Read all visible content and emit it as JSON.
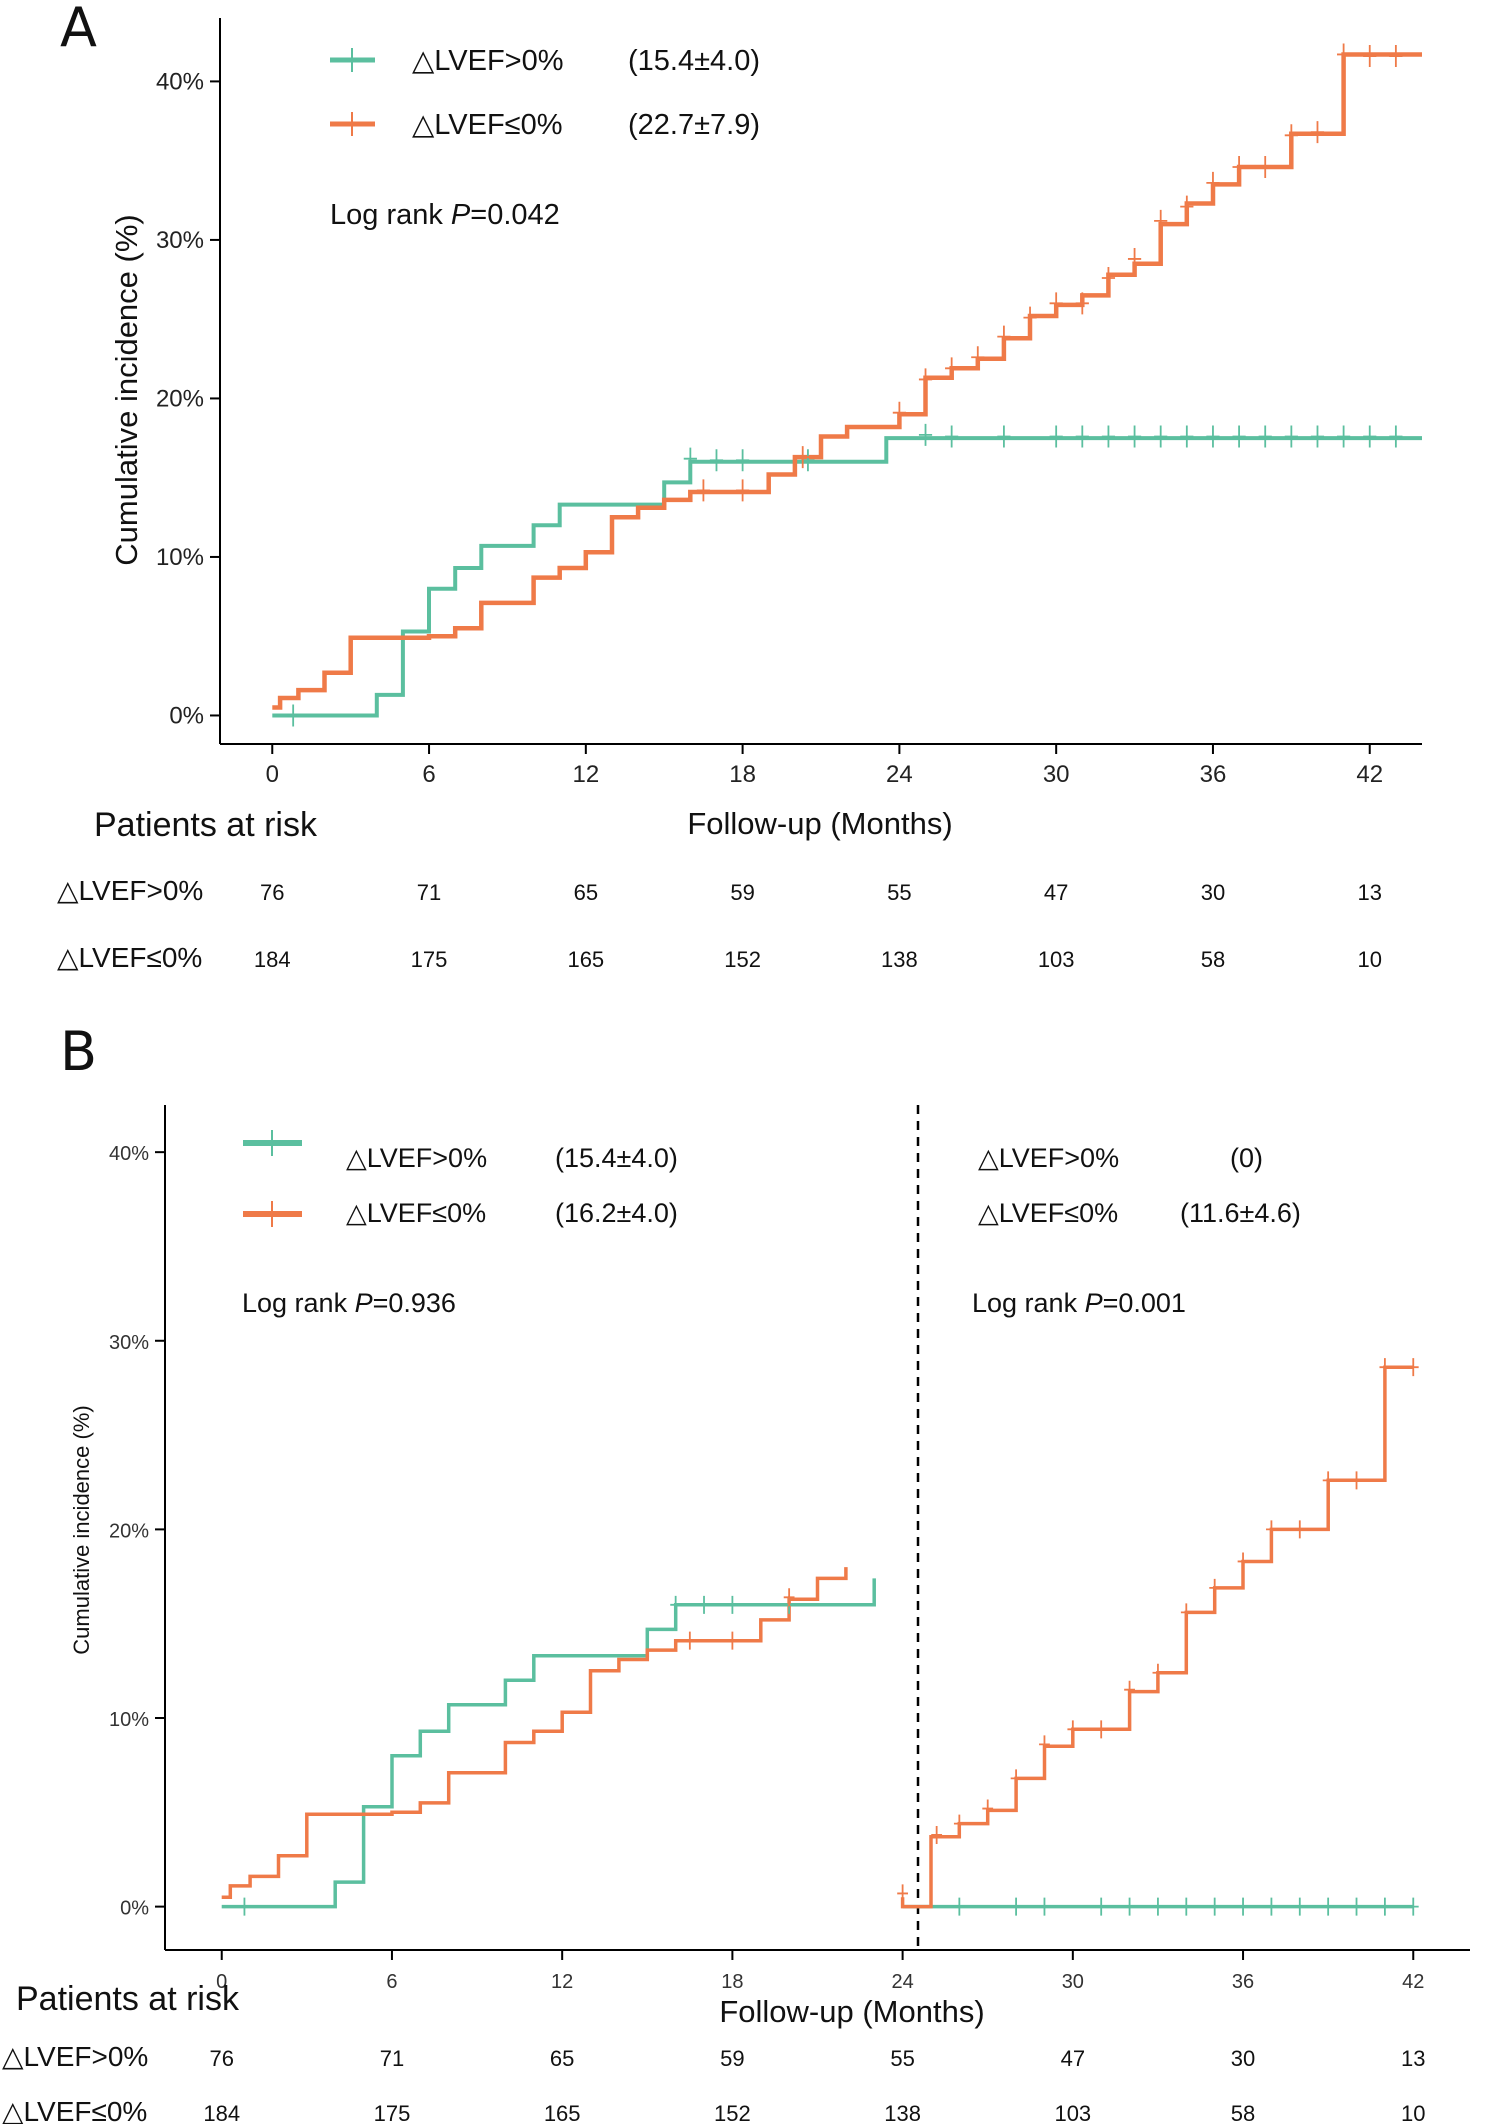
{
  "colors": {
    "increase": "#5bbf9f",
    "decrease": "#ef7a48",
    "axis": "#000000"
  },
  "chart_data": [
    {
      "type": "line",
      "panel": "A",
      "xlabel": "Follow-up (Months)",
      "ylabel": "Cumulative incidence (%)",
      "x_ticks": [
        "0",
        "6",
        "12",
        "18",
        "24",
        "30",
        "36",
        "42"
      ],
      "y_ticks": [
        "0%",
        "10%",
        "20%",
        "30%",
        "40%"
      ],
      "xlim": [
        -2,
        44
      ],
      "ylim": [
        -1.8,
        44
      ],
      "legend": {
        "entries": [
          {
            "label": "△LVEF>0%",
            "value": "(15.4±4.0)"
          },
          {
            "label": "△LVEF≤0%",
            "value": "(22.7±7.9)"
          }
        ],
        "stat_prefix": "Log rank ",
        "stat_p": "P",
        "stat_value": "=0.042"
      },
      "series": [
        {
          "name": "△LVEF>0%",
          "steps": [
            [
              0,
              0
            ],
            [
              4,
              1.3
            ],
            [
              5,
              5.3
            ],
            [
              6,
              8
            ],
            [
              7,
              9.3
            ],
            [
              8,
              10.7
            ],
            [
              10,
              12
            ],
            [
              11,
              13.3
            ],
            [
              15,
              14.7
            ],
            [
              16,
              16
            ],
            [
              20,
              16
            ],
            [
              23.5,
              17.5
            ],
            [
              44,
              17.5
            ]
          ],
          "censors": [
            [
              0.8,
              0
            ],
            [
              16,
              16.2
            ],
            [
              17,
              16.1
            ],
            [
              18,
              16.1
            ],
            [
              20.5,
              16.1
            ],
            [
              25,
              17.7
            ],
            [
              26,
              17.6
            ],
            [
              28,
              17.6
            ],
            [
              30,
              17.6
            ],
            [
              31,
              17.6
            ],
            [
              32,
              17.6
            ],
            [
              33,
              17.6
            ],
            [
              34,
              17.6
            ],
            [
              35,
              17.6
            ],
            [
              36,
              17.6
            ],
            [
              37,
              17.6
            ],
            [
              38,
              17.6
            ],
            [
              39,
              17.6
            ],
            [
              40,
              17.6
            ],
            [
              41,
              17.6
            ],
            [
              42,
              17.6
            ],
            [
              43,
              17.6
            ]
          ]
        },
        {
          "name": "△LVEF≤0%",
          "steps": [
            [
              0,
              0.5
            ],
            [
              0.3,
              1.1
            ],
            [
              1,
              1.6
            ],
            [
              2,
              2.7
            ],
            [
              3,
              4.9
            ],
            [
              6,
              5
            ],
            [
              7,
              5.5
            ],
            [
              8,
              7.1
            ],
            [
              10,
              8.7
            ],
            [
              11,
              9.3
            ],
            [
              12,
              10.3
            ],
            [
              13,
              12.5
            ],
            [
              14,
              13.1
            ],
            [
              15,
              13.6
            ],
            [
              16,
              14.1
            ],
            [
              19,
              15.2
            ],
            [
              20,
              16.3
            ],
            [
              21,
              17.6
            ],
            [
              22,
              18.2
            ],
            [
              24,
              19
            ],
            [
              25,
              21.3
            ],
            [
              26,
              21.9
            ],
            [
              27,
              22.5
            ],
            [
              28,
              23.8
            ],
            [
              29,
              25.2
            ],
            [
              30,
              25.9
            ],
            [
              31,
              26.5
            ],
            [
              32,
              27.8
            ],
            [
              33,
              28.5
            ],
            [
              34,
              31
            ],
            [
              35,
              32.3
            ],
            [
              36,
              33.5
            ],
            [
              37,
              34.6
            ],
            [
              39,
              36.7
            ],
            [
              41,
              41.7
            ],
            [
              44,
              41.7
            ]
          ],
          "censors": [
            [
              16.5,
              14.2
            ],
            [
              18,
              14.2
            ],
            [
              20.3,
              16.3
            ],
            [
              24,
              19.1
            ],
            [
              25,
              21.2
            ],
            [
              26,
              21.9
            ],
            [
              27,
              22.6
            ],
            [
              28,
              23.9
            ],
            [
              29,
              25.1
            ],
            [
              30,
              26
            ],
            [
              31,
              26
            ],
            [
              32,
              27.6
            ],
            [
              33,
              28.8
            ],
            [
              34,
              31.2
            ],
            [
              35,
              32.1
            ],
            [
              36,
              33.6
            ],
            [
              37,
              34.6
            ],
            [
              38,
              34.6
            ],
            [
              39,
              36.6
            ],
            [
              40,
              36.8
            ],
            [
              41,
              41.7
            ],
            [
              42,
              41.6
            ],
            [
              43,
              41.6
            ]
          ]
        }
      ],
      "risk_table": {
        "title": "Patients at risk",
        "rows": [
          {
            "label": "△LVEF>0%",
            "values": [
              "76",
              "71",
              "65",
              "59",
              "55",
              "47",
              "30",
              "13"
            ]
          },
          {
            "label": "△LVEF≤0%",
            "values": [
              "184",
              "175",
              "165",
              "152",
              "138",
              "103",
              "58",
              "10"
            ]
          }
        ]
      }
    },
    {
      "type": "line",
      "panel": "B",
      "xlabel": "Follow-up (Months)",
      "ylabel": "Cumulative incidence (%)",
      "x_ticks": [
        "0",
        "6",
        "12",
        "18",
        "24",
        "30",
        "36",
        "42"
      ],
      "y_ticks": [
        "0%",
        "10%",
        "20%",
        "30%",
        "40%"
      ],
      "xlim": [
        -2,
        44
      ],
      "ylim": [
        -2.3,
        42.5
      ],
      "landmark_month": 24,
      "legend_left": {
        "entries": [
          {
            "label": "△LVEF>0%",
            "value": "(15.4±4.0)"
          },
          {
            "label": "△LVEF≤0%",
            "value": "(16.2±4.0)"
          }
        ],
        "stat_prefix": "Log rank ",
        "stat_p": "P",
        "stat_value": "=0.936"
      },
      "legend_right": {
        "entries": [
          {
            "label": "△LVEF>0%",
            "value": "(0)"
          },
          {
            "label": "△LVEF≤0%",
            "value": "(11.6±4.6)"
          }
        ],
        "stat_prefix": "Log rank ",
        "stat_p": "P",
        "stat_value": "=0.001"
      },
      "series": [
        {
          "name": "△LVEF>0% (0–24 months)",
          "steps": [
            [
              0,
              0
            ],
            [
              4,
              1.3
            ],
            [
              5,
              5.3
            ],
            [
              6,
              8
            ],
            [
              7,
              9.3
            ],
            [
              8,
              10.7
            ],
            [
              10,
              12
            ],
            [
              11,
              13.3
            ],
            [
              15,
              14.7
            ],
            [
              16,
              16
            ],
            [
              23,
              16
            ],
            [
              23,
              17.4
            ]
          ],
          "censors": [
            [
              0.8,
              0
            ],
            [
              16,
              16
            ],
            [
              17,
              16
            ],
            [
              18,
              16
            ],
            [
              20,
              16
            ]
          ]
        },
        {
          "name": "△LVEF≤0% (0–24 months)",
          "steps": [
            [
              0,
              0.5
            ],
            [
              0.3,
              1.1
            ],
            [
              1,
              1.6
            ],
            [
              2,
              2.7
            ],
            [
              3,
              4.9
            ],
            [
              6,
              5
            ],
            [
              7,
              5.5
            ],
            [
              8,
              7.1
            ],
            [
              10,
              8.7
            ],
            [
              11,
              9.3
            ],
            [
              12,
              10.3
            ],
            [
              13,
              12.5
            ],
            [
              14,
              13.1
            ],
            [
              15,
              13.6
            ],
            [
              16,
              14.1
            ],
            [
              19,
              15.2
            ],
            [
              20,
              16.3
            ],
            [
              21,
              17.4
            ],
            [
              22,
              18
            ]
          ],
          "censors": [
            [
              16.5,
              14.1
            ],
            [
              18,
              14.1
            ],
            [
              20,
              16.4
            ]
          ]
        },
        {
          "name": "△LVEF>0% (24–42 months)",
          "steps": [
            [
              24,
              0
            ],
            [
              42,
              0
            ]
          ],
          "censors": [
            [
              26,
              0
            ],
            [
              28,
              0
            ],
            [
              29,
              0
            ],
            [
              31,
              0
            ],
            [
              32,
              0
            ],
            [
              33,
              0
            ],
            [
              34,
              0
            ],
            [
              35,
              0
            ],
            [
              36,
              0
            ],
            [
              37,
              0
            ],
            [
              38,
              0
            ],
            [
              39,
              0
            ],
            [
              40,
              0
            ],
            [
              41,
              0
            ],
            [
              42,
              0
            ]
          ]
        },
        {
          "name": "△LVEF≤0% (24–42 months)",
          "steps": [
            [
              24,
              0.5
            ],
            [
              24,
              0
            ],
            [
              25,
              0
            ],
            [
              25,
              3.7
            ],
            [
              26,
              4.4
            ],
            [
              27,
              5.1
            ],
            [
              28,
              6.8
            ],
            [
              29,
              8.5
            ],
            [
              30,
              9.4
            ],
            [
              32,
              11.4
            ],
            [
              33,
              12.4
            ],
            [
              34,
              15.6
            ],
            [
              35,
              16.9
            ],
            [
              36,
              18.3
            ],
            [
              37,
              20
            ],
            [
              39,
              22.6
            ],
            [
              41,
              28.6
            ],
            [
              42,
              28.6
            ]
          ],
          "censors": [
            [
              24,
              0.7
            ],
            [
              25.2,
              3.8
            ],
            [
              26,
              4.4
            ],
            [
              27,
              5.2
            ],
            [
              28,
              6.8
            ],
            [
              29,
              8.6
            ],
            [
              30,
              9.4
            ],
            [
              31,
              9.4
            ],
            [
              32,
              11.5
            ],
            [
              33,
              12.4
            ],
            [
              34,
              15.6
            ],
            [
              35,
              16.9
            ],
            [
              36,
              18.3
            ],
            [
              37,
              20
            ],
            [
              38,
              20
            ],
            [
              39,
              22.6
            ],
            [
              40,
              22.6
            ],
            [
              41,
              28.6
            ],
            [
              42,
              28.6
            ]
          ]
        }
      ],
      "risk_table": {
        "title": "Patients at risk",
        "rows": [
          {
            "label": "△LVEF>0%",
            "values": [
              "76",
              "71",
              "65",
              "59",
              "55",
              "47",
              "30",
              "13"
            ]
          },
          {
            "label": "△LVEF≤0%",
            "values": [
              "184",
              "175",
              "165",
              "152",
              "138",
              "103",
              "58",
              "10"
            ]
          }
        ]
      }
    }
  ]
}
